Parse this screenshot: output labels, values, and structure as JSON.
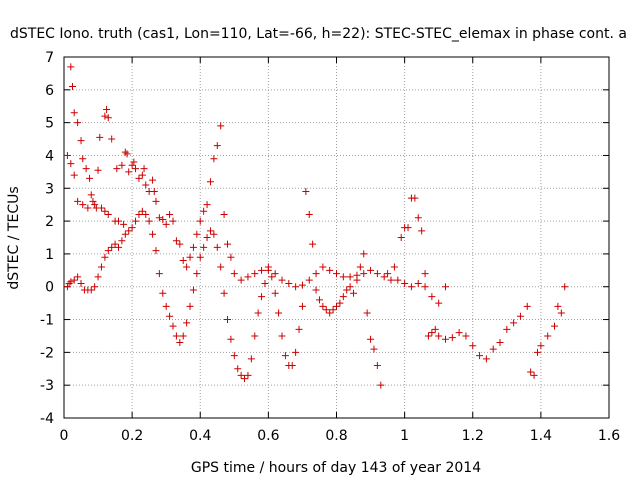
{
  "chart_data": {
    "type": "scatter",
    "title": "dSTEC Iono. truth (cas1, Lon=110, Lat=-66, h=22): STEC-STEC_elemax in phase cont. a",
    "xlabel": "GPS time / hours of day 143 of year 2014",
    "ylabel": "dSTEC  / TECUs",
    "xlim": [
      0,
      1.6
    ],
    "ylim": [
      -4,
      7
    ],
    "xticks": [
      "0",
      "0.2",
      "0.4",
      "0.6",
      "0.8",
      "1",
      "1.2",
      "1.4",
      "1.6"
    ],
    "yticks": [
      "-4",
      "-3",
      "-2",
      "-1",
      "0",
      "1",
      "2",
      "3",
      "4",
      "5",
      "6",
      "7"
    ],
    "grid": true,
    "marker": "plus",
    "marker_color": "#cc0000",
    "series": [
      {
        "values": [
          [
            0.01,
            4.0
          ],
          [
            0.02,
            6.7
          ],
          [
            0.025,
            6.1
          ],
          [
            0.02,
            3.75
          ],
          [
            0.03,
            3.4
          ],
          [
            0.03,
            5.3
          ],
          [
            0.04,
            5.0
          ],
          [
            0.05,
            4.45
          ],
          [
            0.04,
            2.6
          ],
          [
            0.055,
            3.9
          ],
          [
            0.055,
            2.5
          ],
          [
            0.065,
            3.6
          ],
          [
            0.07,
            2.4
          ],
          [
            0.075,
            3.3
          ],
          [
            0.08,
            2.8
          ],
          [
            0.085,
            2.6
          ],
          [
            0.09,
            2.5
          ],
          [
            0.095,
            2.4
          ],
          [
            0.1,
            3.55
          ],
          [
            0.105,
            4.55
          ],
          [
            0.11,
            2.4
          ],
          [
            0.12,
            5.2
          ],
          [
            0.125,
            5.4
          ],
          [
            0.13,
            5.15
          ],
          [
            0.12,
            2.3
          ],
          [
            0.13,
            2.2
          ],
          [
            0.14,
            4.5
          ],
          [
            0.15,
            2.0
          ],
          [
            0.155,
            3.6
          ],
          [
            0.16,
            2.0
          ],
          [
            0.17,
            3.7
          ],
          [
            0.175,
            1.9
          ],
          [
            0.18,
            4.1
          ],
          [
            0.185,
            4.05
          ],
          [
            0.19,
            3.5
          ],
          [
            0.2,
            3.7
          ],
          [
            0.205,
            3.8
          ],
          [
            0.21,
            3.6
          ],
          [
            0.22,
            3.3
          ],
          [
            0.23,
            3.4
          ],
          [
            0.235,
            3.6
          ],
          [
            0.24,
            3.1
          ],
          [
            0.25,
            2.9
          ],
          [
            0.26,
            3.25
          ],
          [
            0.265,
            2.9
          ],
          [
            0.27,
            2.6
          ],
          [
            0.28,
            2.1
          ],
          [
            0.29,
            2.05
          ],
          [
            0.3,
            1.9
          ],
          [
            0.31,
            2.2
          ],
          [
            0.32,
            2.0
          ],
          [
            0.33,
            1.4
          ],
          [
            0.34,
            1.3
          ],
          [
            0.35,
            0.8
          ],
          [
            0.36,
            0.6
          ],
          [
            0.37,
            0.9
          ],
          [
            0.38,
            1.2
          ],
          [
            0.39,
            1.6
          ],
          [
            0.4,
            2.0
          ],
          [
            0.41,
            2.3
          ],
          [
            0.42,
            2.5
          ],
          [
            0.43,
            3.2
          ],
          [
            0.44,
            3.9
          ],
          [
            0.45,
            4.3
          ],
          [
            0.46,
            4.9
          ],
          [
            0.47,
            2.2
          ],
          [
            0.48,
            1.3
          ],
          [
            0.49,
            0.9
          ],
          [
            0.5,
            0.4
          ],
          [
            0.52,
            0.2
          ],
          [
            0.54,
            0.3
          ],
          [
            0.56,
            0.4
          ],
          [
            0.58,
            0.5
          ],
          [
            0.6,
            0.6
          ],
          [
            0.62,
            0.4
          ],
          [
            0.64,
            0.2
          ],
          [
            0.66,
            0.1
          ],
          [
            0.68,
            0.0
          ],
          [
            0.7,
            0.05
          ],
          [
            0.72,
            0.2
          ],
          [
            0.74,
            0.4
          ],
          [
            0.76,
            0.6
          ],
          [
            0.78,
            0.5
          ],
          [
            0.8,
            0.4
          ],
          [
            0.82,
            0.3
          ],
          [
            0.84,
            0.3
          ],
          [
            0.86,
            0.35
          ],
          [
            0.88,
            0.4
          ],
          [
            0.9,
            0.5
          ],
          [
            0.92,
            0.4
          ],
          [
            0.94,
            0.3
          ],
          [
            0.96,
            0.2
          ],
          [
            0.98,
            0.2
          ],
          [
            1.0,
            0.1
          ],
          [
            1.02,
            0.0
          ],
          [
            1.04,
            0.1
          ],
          [
            1.06,
            0.0
          ],
          [
            1.08,
            -0.3
          ],
          [
            1.1,
            -0.5
          ],
          [
            1.12,
            0.0
          ]
        ]
      },
      {
        "values": [
          [
            0.01,
            0.0
          ],
          [
            0.015,
            0.1
          ],
          [
            0.02,
            0.15
          ],
          [
            0.03,
            0.2
          ],
          [
            0.04,
            0.3
          ],
          [
            0.05,
            0.1
          ],
          [
            0.06,
            -0.1
          ],
          [
            0.07,
            -0.1
          ],
          [
            0.08,
            -0.1
          ],
          [
            0.09,
            0.0
          ],
          [
            0.1,
            0.3
          ],
          [
            0.11,
            0.6
          ],
          [
            0.12,
            0.9
          ],
          [
            0.13,
            1.1
          ],
          [
            0.14,
            1.2
          ],
          [
            0.15,
            1.3
          ],
          [
            0.16,
            1.2
          ],
          [
            0.17,
            1.4
          ],
          [
            0.18,
            1.6
          ],
          [
            0.19,
            1.7
          ],
          [
            0.2,
            1.8
          ],
          [
            0.21,
            2.0
          ],
          [
            0.22,
            2.2
          ],
          [
            0.23,
            2.3
          ],
          [
            0.24,
            2.2
          ],
          [
            0.25,
            2.0
          ],
          [
            0.26,
            1.6
          ],
          [
            0.27,
            1.1
          ],
          [
            0.28,
            0.4
          ],
          [
            0.29,
            -0.2
          ],
          [
            0.3,
            -0.6
          ],
          [
            0.31,
            -0.9
          ],
          [
            0.32,
            -1.2
          ],
          [
            0.33,
            -1.5
          ],
          [
            0.34,
            -1.7
          ],
          [
            0.35,
            -1.5
          ],
          [
            0.36,
            -1.1
          ],
          [
            0.37,
            -0.6
          ],
          [
            0.38,
            -0.1
          ],
          [
            0.39,
            0.4
          ],
          [
            0.4,
            0.9
          ],
          [
            0.41,
            1.2
          ],
          [
            0.42,
            1.5
          ],
          [
            0.43,
            1.7
          ],
          [
            0.44,
            1.6
          ],
          [
            0.45,
            1.2
          ],
          [
            0.46,
            0.6
          ],
          [
            0.47,
            -0.2
          ],
          [
            0.48,
            -1.0
          ],
          [
            0.49,
            -1.6
          ],
          [
            0.5,
            -2.1
          ],
          [
            0.51,
            -2.5
          ],
          [
            0.52,
            -2.7
          ],
          [
            0.53,
            -2.8
          ],
          [
            0.54,
            -2.7
          ],
          [
            0.55,
            -2.2
          ],
          [
            0.56,
            -1.5
          ],
          [
            0.57,
            -0.8
          ],
          [
            0.58,
            -0.3
          ],
          [
            0.59,
            0.1
          ],
          [
            0.6,
            0.5
          ],
          [
            0.61,
            0.3
          ],
          [
            0.62,
            -0.2
          ],
          [
            0.63,
            -0.8
          ],
          [
            0.64,
            -1.5
          ],
          [
            0.65,
            -2.1
          ],
          [
            0.66,
            -2.4
          ],
          [
            0.67,
            -2.4
          ],
          [
            0.68,
            -2.0
          ],
          [
            0.69,
            -1.3
          ],
          [
            0.7,
            -0.6
          ],
          [
            0.71,
            2.9
          ],
          [
            0.72,
            2.2
          ],
          [
            0.73,
            1.3
          ],
          [
            0.74,
            -0.1
          ],
          [
            0.75,
            -0.4
          ],
          [
            0.76,
            -0.6
          ],
          [
            0.77,
            -0.7
          ],
          [
            0.78,
            -0.8
          ],
          [
            0.79,
            -0.7
          ],
          [
            0.8,
            -0.6
          ],
          [
            0.81,
            -0.5
          ],
          [
            0.82,
            -0.3
          ],
          [
            0.83,
            -0.1
          ],
          [
            0.84,
            0.0
          ],
          [
            0.85,
            -0.2
          ],
          [
            0.86,
            0.2
          ],
          [
            0.87,
            0.6
          ],
          [
            0.88,
            1.0
          ],
          [
            0.89,
            -0.8
          ],
          [
            0.9,
            -1.6
          ],
          [
            0.91,
            -1.9
          ],
          [
            0.92,
            -2.4
          ],
          [
            0.93,
            -3.0
          ],
          [
            0.95,
            0.4
          ],
          [
            0.97,
            0.6
          ],
          [
            0.99,
            1.5
          ],
          [
            1.0,
            1.8
          ],
          [
            1.01,
            1.8
          ],
          [
            1.02,
            2.7
          ],
          [
            1.03,
            2.7
          ],
          [
            1.04,
            2.1
          ],
          [
            1.05,
            1.7
          ],
          [
            1.06,
            0.4
          ],
          [
            1.07,
            -1.5
          ],
          [
            1.08,
            -1.4
          ],
          [
            1.09,
            -1.3
          ],
          [
            1.1,
            -1.5
          ],
          [
            1.12,
            -1.6
          ],
          [
            1.14,
            -1.55
          ],
          [
            1.16,
            -1.4
          ],
          [
            1.18,
            -1.5
          ],
          [
            1.2,
            -1.8
          ],
          [
            1.22,
            -2.1
          ],
          [
            1.24,
            -2.2
          ],
          [
            1.26,
            -1.9
          ],
          [
            1.28,
            -1.7
          ],
          [
            1.3,
            -1.3
          ],
          [
            1.32,
            -1.1
          ],
          [
            1.34,
            -0.9
          ],
          [
            1.36,
            -0.6
          ],
          [
            1.37,
            -2.6
          ],
          [
            1.38,
            -2.7
          ],
          [
            1.39,
            -2.0
          ],
          [
            1.4,
            -1.8
          ],
          [
            1.42,
            -1.5
          ],
          [
            1.44,
            -1.2
          ],
          [
            1.45,
            -0.6
          ],
          [
            1.46,
            -0.8
          ],
          [
            1.47,
            0.0
          ]
        ]
      }
    ]
  }
}
